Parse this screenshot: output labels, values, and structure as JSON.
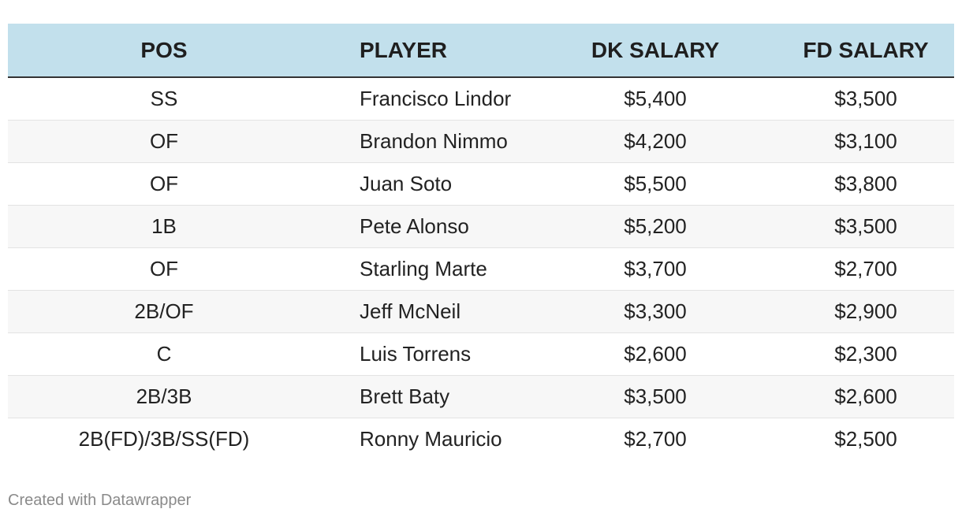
{
  "table": {
    "headers": {
      "pos": "POS",
      "player": "PLAYER",
      "dk_salary": "DK SALARY",
      "fd_salary": "FD SALARY"
    },
    "rows": [
      {
        "pos": "SS",
        "player": "Francisco Lindor",
        "dk": "$5,400",
        "fd": "$3,500"
      },
      {
        "pos": "OF",
        "player": "Brandon Nimmo",
        "dk": "$4,200",
        "fd": "$3,100"
      },
      {
        "pos": "OF",
        "player": "Juan Soto",
        "dk": "$5,500",
        "fd": "$3,800"
      },
      {
        "pos": "1B",
        "player": "Pete Alonso",
        "dk": "$5,200",
        "fd": "$3,500"
      },
      {
        "pos": "OF",
        "player": "Starling Marte",
        "dk": "$3,700",
        "fd": "$2,700"
      },
      {
        "pos": "2B/OF",
        "player": "Jeff McNeil",
        "dk": "$3,300",
        "fd": "$2,900"
      },
      {
        "pos": "C",
        "player": "Luis Torrens",
        "dk": "$2,600",
        "fd": "$2,300"
      },
      {
        "pos": "2B/3B",
        "player": "Brett Baty",
        "dk": "$3,500",
        "fd": "$2,600"
      },
      {
        "pos": "2B(FD)/3B/SS(FD)",
        "player": "Ronny Mauricio",
        "dk": "$2,700",
        "fd": "$2,500"
      }
    ]
  },
  "footer": {
    "credit": "Created with Datawrapper"
  },
  "colors": {
    "header_background": "#c2e0ec",
    "stripe_background": "#f7f7f7",
    "footer_text": "#8a8a8a"
  }
}
